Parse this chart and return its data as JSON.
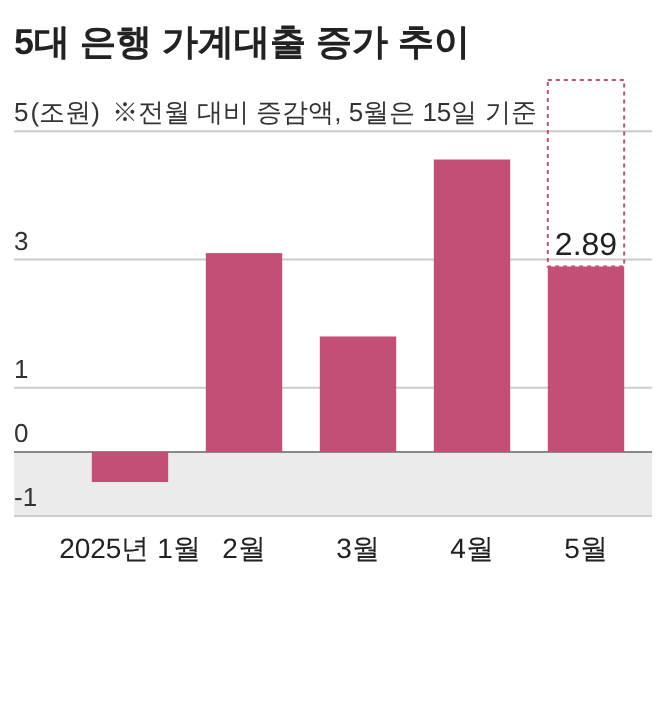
{
  "chart_data": {
    "type": "bar",
    "title": "5대 은행 가계대출 증가 추이",
    "ylabel": "(조원)",
    "subtitle": "※전월 대비 증감액, 5월은 15일 기준",
    "categories": [
      "2025년 1월",
      "2월",
      "3월",
      "4월",
      "5월"
    ],
    "values": [
      -0.47,
      3.1,
      1.8,
      4.56,
      2.89
    ],
    "value_labels": [
      null,
      null,
      null,
      null,
      "2.89"
    ],
    "color": "#c44f76",
    "ylim": [
      -1,
      5.8
    ],
    "yticks": [
      -1,
      0,
      1,
      3,
      5
    ],
    "grid": "y",
    "bands": [
      {
        "axis": "y",
        "from": -1,
        "to": 0,
        "color": "#ebebeb"
      }
    ]
  }
}
